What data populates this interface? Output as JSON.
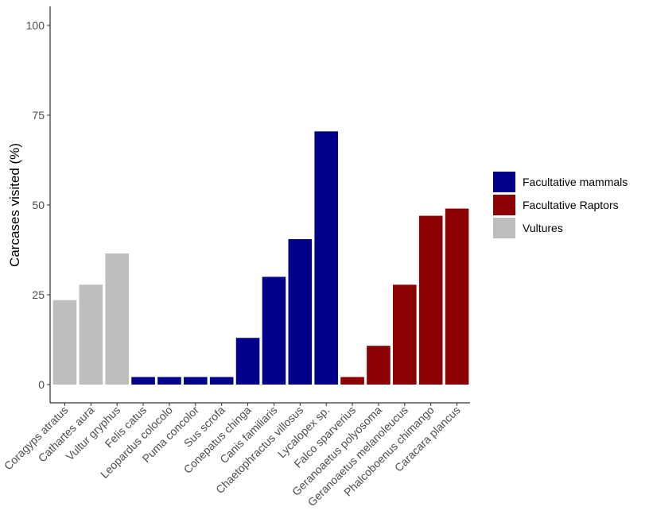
{
  "chart_data": {
    "type": "bar",
    "title": "",
    "xlabel": "",
    "ylabel": "Carcases visited (%)",
    "ylim": [
      0,
      105
    ],
    "yticks": [
      0,
      25,
      50,
      75,
      100
    ],
    "grid": false,
    "legend_position": "right",
    "categories": [
      "Coragyps atratus",
      "Cathartes aura",
      "Vultur gryphus",
      "Felis catus",
      "Leopardus colocolo",
      "Puma concolor",
      "Sus scrofa",
      "Conepatus chinga",
      "Canis familiaris",
      "Chaetophractus villosus",
      "Lycalopex sp.",
      "Falco sparverius",
      "Geranoaetus polyosoma",
      "Geranoaetus melanoleucus",
      "Phalcoboenus chimango",
      "Caracara plancus"
    ],
    "values": [
      23.5,
      27.8,
      36.5,
      2.1,
      2.1,
      2.1,
      2.1,
      13.0,
      30.0,
      40.5,
      70.5,
      2.1,
      10.8,
      27.8,
      47.0,
      49.0
    ],
    "groups": [
      "Vultures",
      "Vultures",
      "Vultures",
      "Facultative mammals",
      "Facultative mammals",
      "Facultative mammals",
      "Facultative mammals",
      "Facultative mammals",
      "Facultative mammals",
      "Facultative mammals",
      "Facultative mammals",
      "Facultative Raptors",
      "Facultative Raptors",
      "Facultative Raptors",
      "Facultative Raptors",
      "Facultative Raptors"
    ],
    "legend": [
      {
        "name": "Facultative mammals",
        "color": "#00008B"
      },
      {
        "name": "Facultative Raptors",
        "color": "#8B0000"
      },
      {
        "name": "Vultures",
        "color": "#BEBEBE"
      }
    ]
  }
}
